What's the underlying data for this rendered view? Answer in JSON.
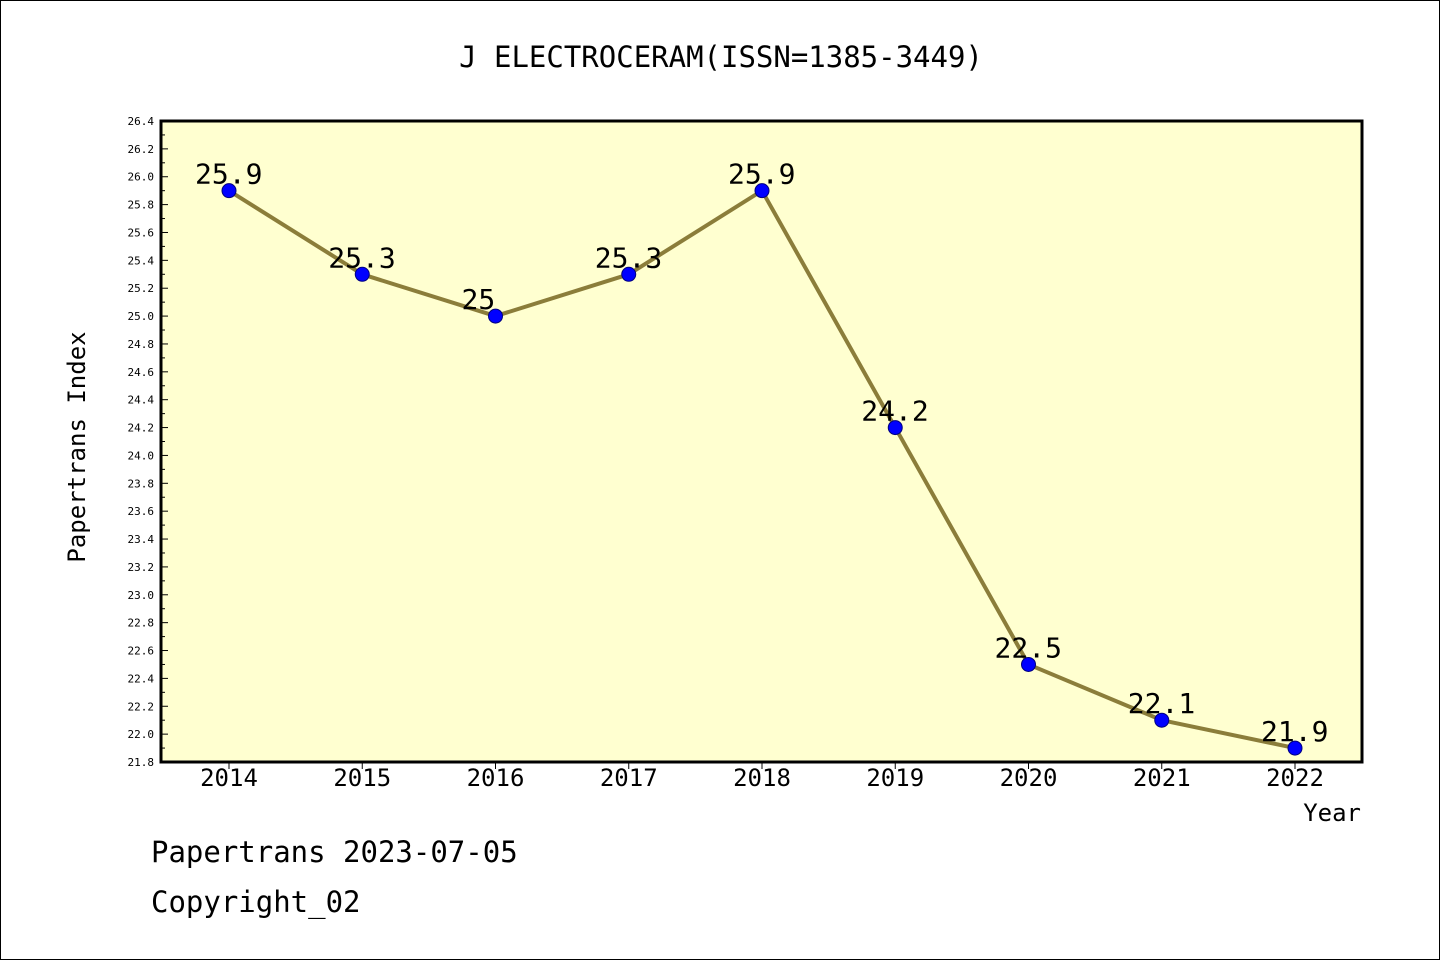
{
  "chart_data": {
    "type": "line",
    "title": "J ELECTROCERAM(ISSN=1385-3449)",
    "xlabel": "Year",
    "ylabel": "Papertrans Index",
    "categories": [
      "2014",
      "2015",
      "2016",
      "2017",
      "2018",
      "2019",
      "2020",
      "2021",
      "2022"
    ],
    "series": [
      {
        "values": [
          25.9,
          25.3,
          25.0,
          25.3,
          25.9,
          24.2,
          22.5,
          22.1,
          21.9
        ],
        "labels": [
          "25.9",
          "25.3",
          "25",
          "25.3",
          "25.9",
          "24.2",
          "22.5",
          "22.1",
          "21.9"
        ]
      }
    ],
    "ylim": [
      21.8,
      26.4
    ],
    "ytick_step": 0.2,
    "yticks": [
      "21.8",
      "22.0",
      "22.2",
      "22.4",
      "22.6",
      "22.8",
      "23.0",
      "23.2",
      "23.4",
      "23.6",
      "23.8",
      "24.0",
      "24.2",
      "24.4",
      "24.6",
      "24.8",
      "25.0",
      "25.2",
      "25.4",
      "25.6",
      "25.8",
      "26.0",
      "26.2",
      "26.4"
    ],
    "grid": false,
    "colors": {
      "plot_background": "#ffffd0",
      "line": "#8b7d3a",
      "marker_fill": "#0000ff",
      "marker_edge": "#000080"
    }
  },
  "footer": {
    "date_line": "Papertrans 2023-07-05",
    "copyright": "Copyright_02"
  }
}
